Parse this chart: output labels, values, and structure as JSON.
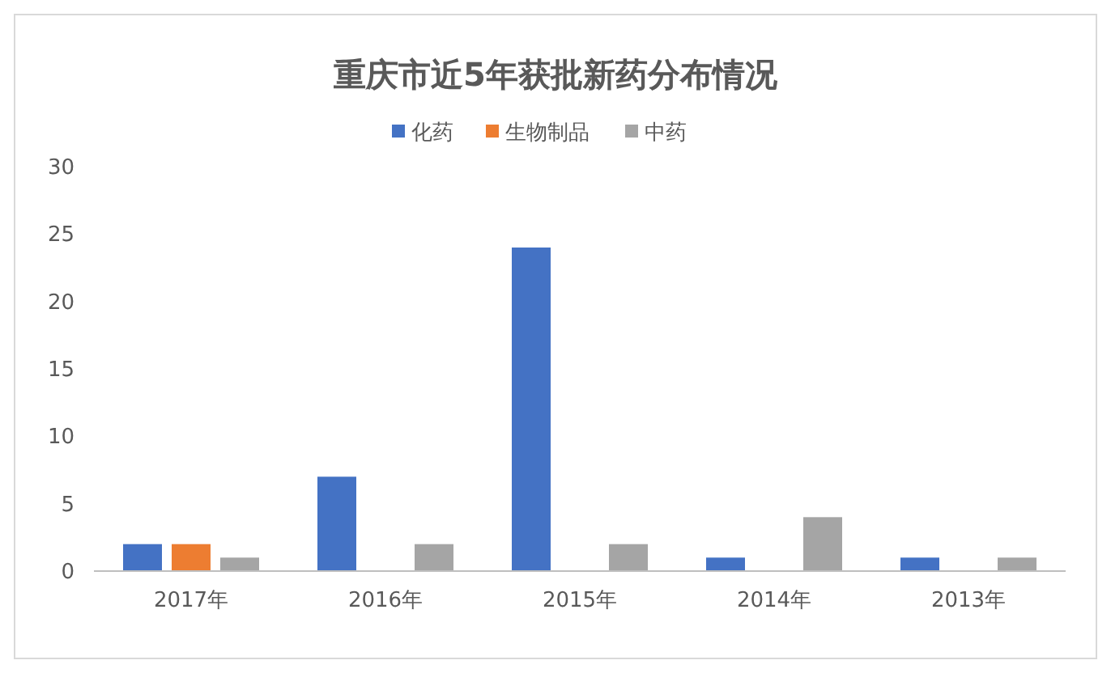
{
  "chart_data": {
    "type": "bar",
    "title": "重庆市近5年获批新药分布情况",
    "categories": [
      "2017年",
      "2016年",
      "2015年",
      "2014年",
      "2013年"
    ],
    "series": [
      {
        "name": "化药",
        "color": "#4472c4",
        "values": [
          2,
          7,
          24,
          1,
          1
        ]
      },
      {
        "name": "生物制品",
        "color": "#ed7d31",
        "values": [
          2,
          0,
          0,
          0,
          0
        ]
      },
      {
        "name": "中药",
        "color": "#a5a5a5",
        "values": [
          1,
          2,
          2,
          4,
          1
        ]
      }
    ],
    "ylim": [
      0,
      30
    ],
    "yticks": [
      0,
      5,
      10,
      15,
      20,
      25,
      30
    ],
    "grid": false,
    "legend": "top"
  }
}
